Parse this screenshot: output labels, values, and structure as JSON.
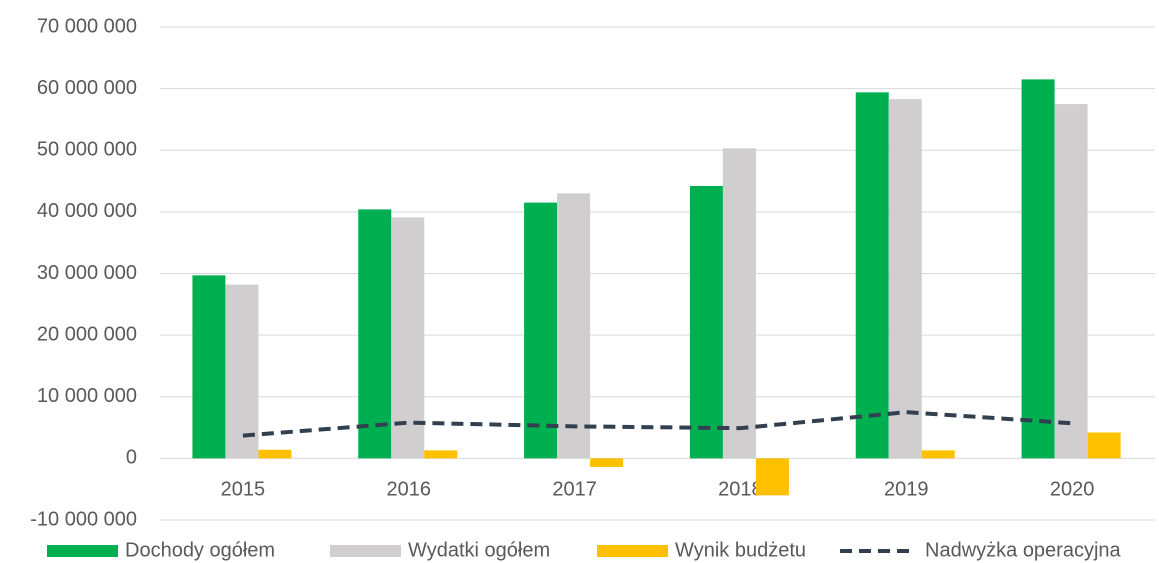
{
  "chart_data": {
    "type": "bar",
    "categories": [
      "2015",
      "2016",
      "2017",
      "2018",
      "2019",
      "2020"
    ],
    "series": [
      {
        "name": "Dochody ogółem",
        "color": "#00b050",
        "values": [
          29700000,
          40400000,
          41500000,
          44200000,
          59400000,
          61500000
        ]
      },
      {
        "name": "Wydatki ogółem",
        "color": "#d0cece",
        "values": [
          28200000,
          39100000,
          43000000,
          50300000,
          58300000,
          57500000
        ]
      },
      {
        "name": "Wynik budżetu",
        "color": "#ffc000",
        "values": [
          1400000,
          1300000,
          -1400000,
          -6000000,
          1300000,
          4200000
        ]
      },
      {
        "name": "Nadwyżka operacyjna",
        "color": "#323f4f",
        "type": "line",
        "dashed": true,
        "values": [
          3700000,
          5800000,
          5200000,
          4900000,
          7500000,
          5700000
        ]
      }
    ],
    "ylim": [
      -10000000,
      70000000
    ],
    "yticks": [
      {
        "value": -10000000,
        "label": "-10 000 000"
      },
      {
        "value": 0,
        "label": "0"
      },
      {
        "value": 10000000,
        "label": "10 000 000"
      },
      {
        "value": 20000000,
        "label": "20 000 000"
      },
      {
        "value": 30000000,
        "label": "30 000 000"
      },
      {
        "value": 40000000,
        "label": "40 000 000"
      },
      {
        "value": 50000000,
        "label": "50 000 000"
      },
      {
        "value": 60000000,
        "label": "60 000 000"
      },
      {
        "value": 70000000,
        "label": "70 000 000"
      }
    ],
    "grid": true,
    "legend": "bottom"
  }
}
